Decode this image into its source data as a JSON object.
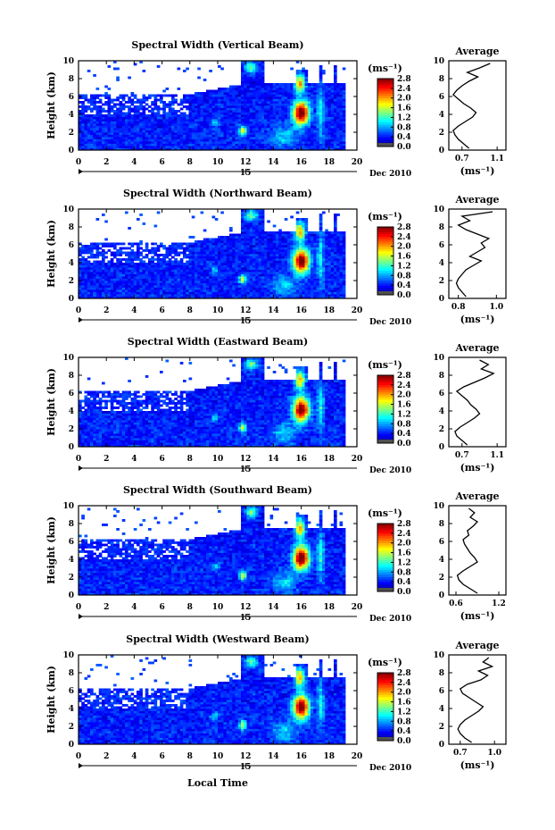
{
  "figure": {
    "xlabel": "Local Time",
    "date_label": "Dec 2010",
    "day_label": "15",
    "colorbar_unit": "(ms⁻¹)",
    "ylabel": "Height (km)",
    "average_title": "Average",
    "average_unit": "(ms⁻¹)"
  },
  "chart_data": [
    {
      "type": "heatmap",
      "title": "Spectral Width (Vertical Beam)",
      "x_ticks": [
        0,
        2,
        4,
        6,
        8,
        10,
        12,
        14,
        16,
        18,
        20
      ],
      "x_range": [
        0,
        20
      ],
      "y_ticks": [
        0,
        2,
        4,
        6,
        8,
        10
      ],
      "y_range": [
        0,
        10
      ],
      "ylabel": "Height (km)",
      "colorbar_ticks": [
        "2.8",
        "2.4",
        "2.0",
        "1.6",
        "1.2",
        "0.8",
        "0.4",
        "0.0"
      ],
      "colorbar_range": [
        0,
        2.8
      ],
      "profile": {
        "title": "Average",
        "x_ticks": [
          "0.7",
          "1.1"
        ],
        "x_range": [
          0.55,
          1.2
        ],
        "height": [
          0.2,
          0.7,
          1.2,
          1.7,
          2.2,
          2.7,
          3.2,
          3.7,
          4.2,
          4.7,
          5.2,
          5.7,
          6.2,
          6.7,
          7.2,
          7.7,
          8.2,
          8.7,
          9.2,
          9.7
        ],
        "value": [
          0.78,
          0.72,
          0.66,
          0.62,
          0.6,
          0.66,
          0.74,
          0.82,
          0.86,
          0.8,
          0.72,
          0.66,
          0.6,
          0.64,
          0.7,
          0.78,
          0.88,
          0.76,
          0.9,
          1.02
        ]
      }
    },
    {
      "type": "heatmap",
      "title": "Spectral Width (Northward Beam)",
      "x_ticks": [
        0,
        2,
        4,
        6,
        8,
        10,
        12,
        14,
        16,
        18,
        20
      ],
      "x_range": [
        0,
        20
      ],
      "y_ticks": [
        0,
        2,
        4,
        6,
        8,
        10
      ],
      "y_range": [
        0,
        10
      ],
      "ylabel": "Height (km)",
      "colorbar_ticks": [
        "2.8",
        "2.4",
        "2.0",
        "1.6",
        "1.2",
        "0.8",
        "0.4",
        "0.0"
      ],
      "colorbar_range": [
        0,
        2.8
      ],
      "profile": {
        "title": "Average",
        "x_ticks": [
          "0.8",
          "1.0"
        ],
        "x_range": [
          0.75,
          1.05
        ],
        "height": [
          0.2,
          0.7,
          1.2,
          1.7,
          2.2,
          2.7,
          3.2,
          3.7,
          4.2,
          4.7,
          5.2,
          5.7,
          6.2,
          6.7,
          7.2,
          7.7,
          8.2,
          8.7,
          9.2,
          9.7
        ],
        "value": [
          0.84,
          0.82,
          0.8,
          0.79,
          0.8,
          0.82,
          0.84,
          0.88,
          0.92,
          0.86,
          0.9,
          0.94,
          0.92,
          0.96,
          0.9,
          0.84,
          0.8,
          0.86,
          0.82,
          0.98
        ]
      }
    },
    {
      "type": "heatmap",
      "title": "Spectral Width (Eastward Beam)",
      "x_ticks": [
        0,
        2,
        4,
        6,
        8,
        10,
        12,
        14,
        16,
        18,
        20
      ],
      "x_range": [
        0,
        20
      ],
      "y_ticks": [
        0,
        2,
        4,
        6,
        8,
        10
      ],
      "y_range": [
        0,
        10
      ],
      "ylabel": "Height (km)",
      "colorbar_ticks": [
        "2.8",
        "2.4",
        "2.0",
        "1.6",
        "1.2",
        "0.8",
        "0.4",
        "0.0"
      ],
      "colorbar_range": [
        0,
        2.8
      ],
      "profile": {
        "title": "Average",
        "x_ticks": [
          "0.7",
          "1.1"
        ],
        "x_range": [
          0.55,
          1.2
        ],
        "height": [
          0.2,
          0.7,
          1.2,
          1.7,
          2.2,
          2.7,
          3.2,
          3.7,
          4.2,
          4.7,
          5.2,
          5.7,
          6.2,
          6.7,
          7.2,
          7.7,
          8.2,
          8.7,
          9.2,
          9.7
        ],
        "value": [
          0.76,
          0.7,
          0.64,
          0.62,
          0.68,
          0.76,
          0.84,
          0.9,
          0.86,
          0.8,
          0.76,
          0.7,
          0.64,
          0.72,
          0.84,
          0.96,
          1.06,
          0.92,
          1.0,
          0.9
        ]
      }
    },
    {
      "type": "heatmap",
      "title": "Spectral Width (Southward Beam)",
      "x_ticks": [
        0,
        2,
        4,
        6,
        8,
        10,
        12,
        14,
        16,
        18,
        20
      ],
      "x_range": [
        0,
        20
      ],
      "y_ticks": [
        0,
        2,
        4,
        6,
        8,
        10
      ],
      "y_range": [
        0,
        10
      ],
      "ylabel": "Height (km)",
      "colorbar_ticks": [
        "2.8",
        "2.4",
        "2.0",
        "1.6",
        "1.2",
        "0.8",
        "0.4",
        "0.0"
      ],
      "colorbar_range": [
        0,
        2.8
      ],
      "profile": {
        "title": "Average",
        "x_ticks": [
          "0.6",
          "1.2"
        ],
        "x_range": [
          0.5,
          1.3
        ],
        "height": [
          0.2,
          0.7,
          1.2,
          1.7,
          2.2,
          2.7,
          3.2,
          3.7,
          4.2,
          4.7,
          5.2,
          5.7,
          6.2,
          6.7,
          7.2,
          7.7,
          8.2,
          8.7,
          9.2,
          9.7
        ],
        "value": [
          0.9,
          0.8,
          0.7,
          0.64,
          0.62,
          0.7,
          0.8,
          0.9,
          0.86,
          0.8,
          0.76,
          0.72,
          0.7,
          0.78,
          0.76,
          0.84,
          0.9,
          0.8,
          0.86,
          0.78
        ]
      }
    },
    {
      "type": "heatmap",
      "title": "Spectral Width (Westward Beam)",
      "x_ticks": [
        0,
        2,
        4,
        6,
        8,
        10,
        12,
        14,
        16,
        18,
        20
      ],
      "x_range": [
        0,
        20
      ],
      "y_ticks": [
        0,
        2,
        4,
        6,
        8,
        10
      ],
      "y_range": [
        0,
        10
      ],
      "ylabel": "Height (km)",
      "colorbar_ticks": [
        "2.8",
        "2.4",
        "2.0",
        "1.6",
        "1.2",
        "0.8",
        "0.4",
        "0.0"
      ],
      "colorbar_range": [
        0,
        2.8
      ],
      "profile": {
        "title": "Average",
        "x_ticks": [
          "0.7",
          "1.0"
        ],
        "x_range": [
          0.6,
          1.1
        ],
        "height": [
          0.2,
          0.7,
          1.2,
          1.7,
          2.2,
          2.7,
          3.2,
          3.7,
          4.2,
          4.7,
          5.2,
          5.7,
          6.2,
          6.7,
          7.2,
          7.7,
          8.2,
          8.7,
          9.2,
          9.7
        ],
        "value": [
          0.8,
          0.74,
          0.7,
          0.68,
          0.7,
          0.74,
          0.8,
          0.86,
          0.9,
          0.84,
          0.78,
          0.72,
          0.7,
          0.76,
          0.88,
          0.94,
          0.86,
          0.98,
          0.9,
          0.95
        ]
      }
    }
  ]
}
